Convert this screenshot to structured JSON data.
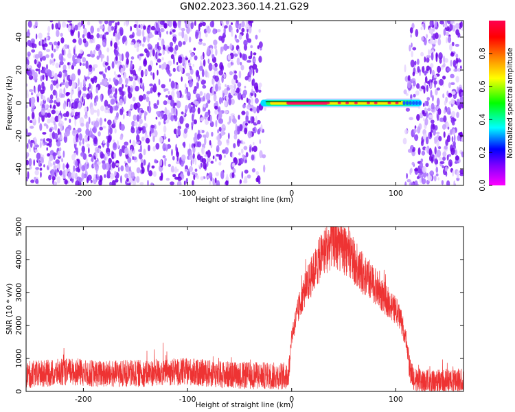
{
  "title": "GN02.2023.360.14.21.G29",
  "colors": {
    "snr_line": "#ee3333",
    "plot_frame": "#000000",
    "noise_purple": "#8a2be2",
    "colorscale": [
      "#ff00ff",
      "#8000ff",
      "#0000ff",
      "#00ffff",
      "#00ff00",
      "#ffff00",
      "#ff8000",
      "#ff0000",
      "#ff0050"
    ]
  },
  "chart_data": [
    {
      "type": "heatmap",
      "xlabel": "Height of straight line (km)",
      "ylabel": "Frequency (Hz)",
      "xlim": [
        -255,
        165
      ],
      "ylim": [
        -50,
        50
      ],
      "xticks": [
        -200,
        -100,
        0,
        100
      ],
      "yticks": [
        -40,
        -20,
        0,
        20,
        40
      ],
      "grid": false,
      "signal_band": {
        "x_start": -30,
        "x_end": 125,
        "frequency_hz": 0,
        "peak_x_range": [
          -5,
          35
        ]
      },
      "noise_regions": [
        [
          -255,
          -25
        ],
        [
          108,
          165
        ]
      ],
      "colorbar": {
        "label": "Normalized spectral amplitude",
        "range": [
          0,
          1
        ],
        "ticks": [
          0.0,
          0.2,
          0.4,
          0.6,
          0.8
        ]
      }
    },
    {
      "type": "line",
      "xlabel": "Height of straight line (km)",
      "ylabel": "SNR (10 * v/v)",
      "xlim": [
        -255,
        165
      ],
      "ylim": [
        0,
        5000
      ],
      "xticks": [
        -200,
        -100,
        0,
        100
      ],
      "yticks": [
        0,
        1000,
        2000,
        3000,
        4000,
        5000
      ],
      "grid": false,
      "series": [
        {
          "x": [
            -255,
            -230,
            -210,
            -180,
            -150,
            -120,
            -100,
            -70,
            -40,
            -15,
            -5,
            -3,
            0,
            10,
            20,
            30,
            40,
            50,
            60,
            70,
            80,
            90,
            100,
            105,
            110,
            113,
            118,
            130,
            150,
            165
          ],
          "y": [
            500,
            560,
            600,
            520,
            540,
            580,
            600,
            520,
            480,
            470,
            470,
            500,
            1700,
            2900,
            3550,
            4200,
            4550,
            4300,
            3950,
            3500,
            3200,
            2800,
            2450,
            2200,
            1500,
            700,
            300,
            260,
            280,
            300
          ]
        }
      ]
    }
  ]
}
